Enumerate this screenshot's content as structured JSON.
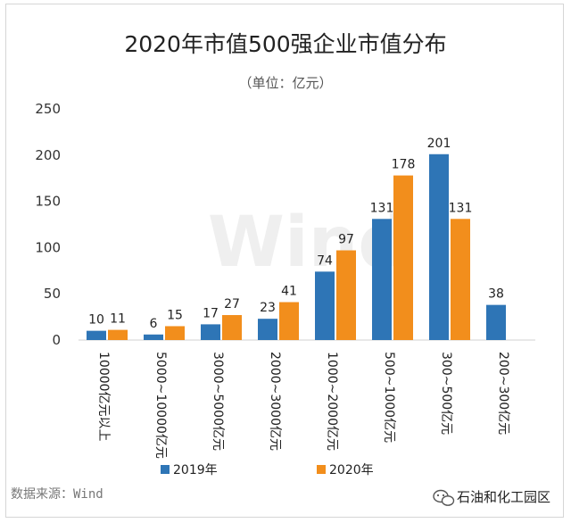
{
  "chart_data": {
    "type": "bar",
    "title": "2020年市值500强企业市值分布",
    "subtitle": "（单位：亿元）",
    "categories": [
      "10000亿元以上",
      "5000~10000亿元",
      "3000~5000亿元",
      "2000~3000亿元",
      "1000~2000亿元",
      "500~1000亿元",
      "300~500亿元",
      "200~300亿元"
    ],
    "series": [
      {
        "name": "2019年",
        "color": "#2e75b6",
        "values": [
          10,
          6,
          17,
          23,
          74,
          131,
          201,
          38
        ]
      },
      {
        "name": "2020年",
        "color": "#f28e1c",
        "values": [
          11,
          15,
          27,
          41,
          97,
          178,
          131,
          null
        ]
      }
    ],
    "ylim": [
      0,
      250
    ],
    "yticks": [
      0,
      50,
      100,
      150,
      200,
      250
    ],
    "grid": false,
    "legend_position": "bottom"
  },
  "source": "数据来源：Wind",
  "watermark_logo": "Wind",
  "account_watermark": "石油和化工园区"
}
